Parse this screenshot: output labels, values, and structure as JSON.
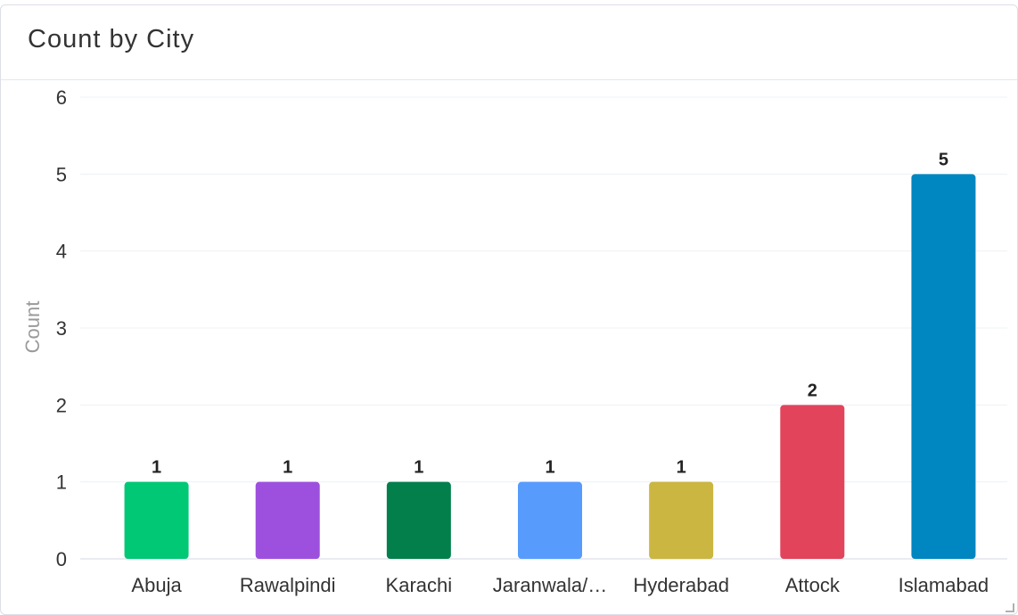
{
  "card": {
    "title": "Count by City"
  },
  "chart_data": {
    "type": "bar",
    "categories": [
      "Abuja",
      "Rawalpindi",
      "Karachi",
      "Jaranwala/…",
      "Hyderabad",
      "Attock",
      "Islamabad"
    ],
    "values": [
      1,
      1,
      1,
      1,
      1,
      2,
      5
    ],
    "colors": [
      "#00c875",
      "#9d50dd",
      "#037f4c",
      "#579bfc",
      "#cab641",
      "#e2445c",
      "#0086c0"
    ],
    "title": "Count by City",
    "xlabel": "",
    "ylabel": "Count",
    "ylim": [
      0,
      6
    ],
    "yticks": [
      0,
      1,
      2,
      3,
      4,
      5,
      6
    ],
    "grid": true,
    "data_labels": true,
    "legend": "none"
  }
}
